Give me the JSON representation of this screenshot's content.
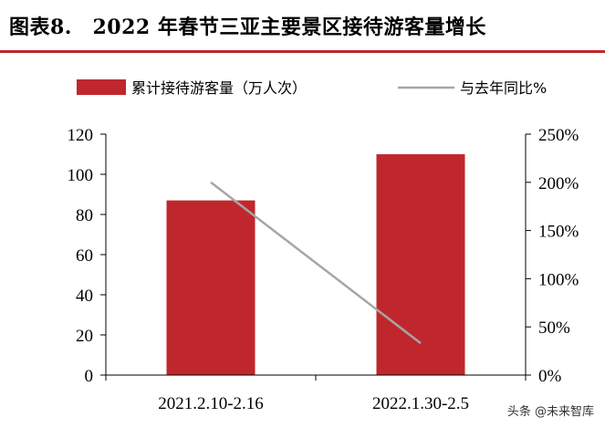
{
  "page": {
    "title": "图表8.　2022 年春节三亚主要景区接待游客量增长",
    "watermark": "头条 @未来智库"
  },
  "colors": {
    "bar": "#C0272D",
    "line": "#A6A6A6",
    "rule": "#C0272D",
    "axis": "#000000"
  },
  "chart_data": {
    "type": "bar",
    "categories": [
      "2021.2.10-2.16",
      "2022.1.30-2.5"
    ],
    "series": [
      {
        "name": "累计接待游客量（万人次）",
        "type": "bar",
        "axis": "left",
        "values": [
          87,
          110
        ]
      },
      {
        "name": "与去年同比%",
        "type": "line",
        "axis": "right",
        "values": [
          200,
          33
        ]
      }
    ],
    "y_left": {
      "min": 0,
      "max": 120,
      "ticks": [
        "0",
        "20",
        "40",
        "60",
        "80",
        "100",
        "120"
      ]
    },
    "y_right": {
      "min": 0,
      "max": 250,
      "ticks": [
        "0%",
        "50%",
        "100%",
        "150%",
        "200%",
        "250%"
      ]
    },
    "legend": "top",
    "grid": false
  }
}
